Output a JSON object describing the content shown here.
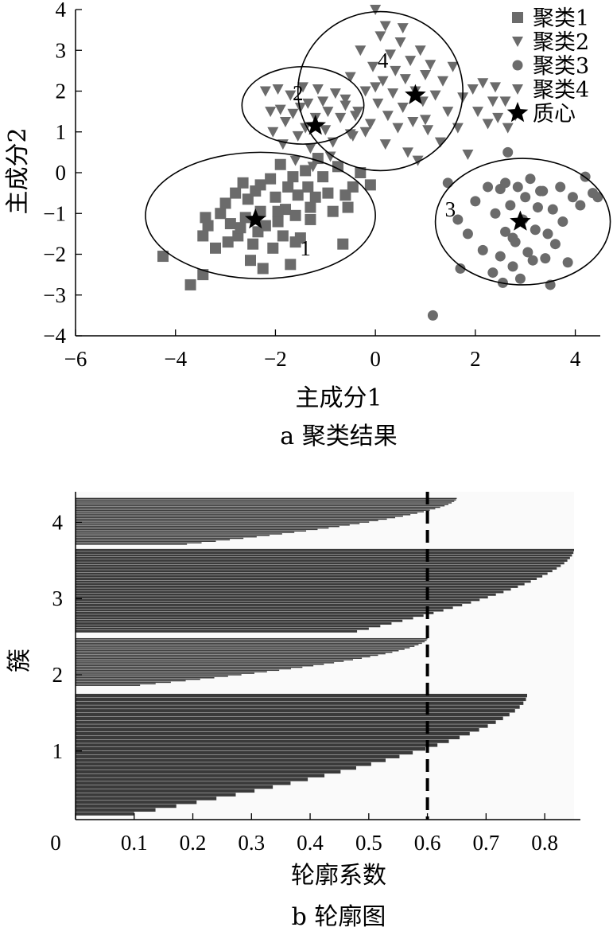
{
  "chart_data": [
    {
      "type": "scatter",
      "caption": "a 聚类结果",
      "xlabel": "主成分1",
      "ylabel": "主成分2",
      "xlim": [
        -6,
        4.5
      ],
      "ylim": [
        -4,
        4
      ],
      "xticks": [
        "−6",
        "−4",
        "−2",
        "0",
        "2",
        "4"
      ],
      "yticks": [
        "4",
        "3",
        "2",
        "1",
        "0",
        "−1",
        "−2",
        "−3",
        "−4"
      ],
      "legend_position": "top-right",
      "series": [
        {
          "name": "聚类1",
          "marker": "square",
          "color": "#6b6b6b",
          "points": [
            [
              -4.25,
              -2.05
            ],
            [
              -3.7,
              -2.75
            ],
            [
              -3.45,
              -2.5
            ],
            [
              -3.45,
              -1.55
            ],
            [
              -3.4,
              -1.1
            ],
            [
              -3.35,
              -1.3
            ],
            [
              -3.2,
              -1.85
            ],
            [
              -3.1,
              -1.0
            ],
            [
              -3.0,
              -0.75
            ],
            [
              -2.9,
              -1.25
            ],
            [
              -2.8,
              -0.5
            ],
            [
              -2.75,
              -1.55
            ],
            [
              -2.65,
              -0.25
            ],
            [
              -2.6,
              -1.1
            ],
            [
              -2.55,
              -0.65
            ],
            [
              -2.5,
              -2.15
            ],
            [
              -2.45,
              -1.75
            ],
            [
              -2.4,
              -0.45
            ],
            [
              -2.35,
              -1.45
            ],
            [
              -2.3,
              -0.95
            ],
            [
              -2.25,
              -2.35
            ],
            [
              -2.2,
              -1.3
            ],
            [
              -2.1,
              -0.15
            ],
            [
              -2.05,
              -1.85
            ],
            [
              -2.0,
              -0.6
            ],
            [
              -1.95,
              -1.2
            ],
            [
              -1.9,
              0.2
            ],
            [
              -1.85,
              -1.55
            ],
            [
              -1.8,
              -0.9
            ],
            [
              -1.75,
              -0.35
            ],
            [
              -1.7,
              -2.25
            ],
            [
              -1.65,
              -0.1
            ],
            [
              -1.6,
              -1.05
            ],
            [
              -1.55,
              -0.55
            ],
            [
              -1.5,
              -1.6
            ],
            [
              -1.4,
              0.05
            ],
            [
              -1.35,
              -0.35
            ],
            [
              -1.3,
              -1.15
            ],
            [
              -1.2,
              -0.6
            ],
            [
              -1.15,
              0.35
            ],
            [
              -1.05,
              -0.1
            ],
            [
              -0.95,
              -0.5
            ],
            [
              -0.85,
              -0.95
            ],
            [
              -0.75,
              0.15
            ],
            [
              -0.65,
              -1.75
            ],
            [
              -0.55,
              -0.85
            ],
            [
              -0.45,
              -0.35
            ],
            [
              -0.3,
              0.0
            ],
            [
              -0.1,
              -0.3
            ],
            [
              -2.7,
              -1.35
            ],
            [
              -2.95,
              -1.7
            ],
            [
              -1.6,
              -1.7
            ],
            [
              -1.95,
              -0.95
            ],
            [
              -2.3,
              -0.3
            ],
            [
              -1.3,
              -0.85
            ],
            [
              -0.6,
              -0.55
            ]
          ]
        },
        {
          "name": "聚类2",
          "marker": "triangle-down",
          "color": "#6b6b6b",
          "points": [
            [
              -2.2,
              2.0
            ],
            [
              -2.1,
              1.5
            ],
            [
              -2.05,
              1.0
            ],
            [
              -1.95,
              2.05
            ],
            [
              -1.9,
              1.55
            ],
            [
              -1.85,
              0.7
            ],
            [
              -1.8,
              1.25
            ],
            [
              -1.7,
              1.9
            ],
            [
              -1.65,
              1.45
            ],
            [
              -1.55,
              0.9
            ],
            [
              -1.5,
              1.6
            ],
            [
              -1.45,
              2.1
            ],
            [
              -1.4,
              1.1
            ],
            [
              -1.35,
              1.7
            ],
            [
              -1.3,
              0.6
            ],
            [
              -1.2,
              1.35
            ],
            [
              -1.15,
              2.05
            ],
            [
              -1.05,
              1.75
            ],
            [
              -1.0,
              1.05
            ],
            [
              -0.95,
              1.5
            ],
            [
              -0.85,
              0.75
            ],
            [
              -0.8,
              1.95
            ],
            [
              -0.7,
              1.35
            ],
            [
              -0.6,
              1.65
            ],
            [
              -0.5,
              0.95
            ],
            [
              -0.4,
              1.4
            ],
            [
              -1.6,
              0.3
            ],
            [
              -1.25,
              0.15
            ],
            [
              -0.9,
              0.4
            ]
          ]
        },
        {
          "name": "聚类3",
          "marker": "circle",
          "color": "#6b6b6b",
          "points": [
            [
              1.15,
              -3.5
            ],
            [
              1.45,
              -0.25
            ],
            [
              1.65,
              -1.15
            ],
            [
              1.7,
              -2.35
            ],
            [
              1.85,
              -1.5
            ],
            [
              2.0,
              -0.7
            ],
            [
              2.15,
              -1.9
            ],
            [
              2.25,
              -0.35
            ],
            [
              2.35,
              -2.45
            ],
            [
              2.4,
              -1.0
            ],
            [
              2.5,
              -0.4
            ],
            [
              2.5,
              -2.05
            ],
            [
              2.55,
              -2.7
            ],
            [
              2.6,
              -1.45
            ],
            [
              2.65,
              0.5
            ],
            [
              2.7,
              -0.8
            ],
            [
              2.75,
              -2.3
            ],
            [
              2.8,
              -1.7
            ],
            [
              2.85,
              -0.35
            ],
            [
              2.9,
              -2.6
            ],
            [
              2.95,
              -1.15
            ],
            [
              3.0,
              -0.6
            ],
            [
              3.05,
              -1.95
            ],
            [
              3.1,
              -0.15
            ],
            [
              3.15,
              -2.15
            ],
            [
              3.2,
              -1.4
            ],
            [
              3.25,
              -0.85
            ],
            [
              3.35,
              -0.45
            ],
            [
              3.4,
              -2.1
            ],
            [
              3.45,
              -1.5
            ],
            [
              3.5,
              -2.75
            ],
            [
              3.55,
              -0.9
            ],
            [
              3.6,
              -1.75
            ],
            [
              3.7,
              -0.35
            ],
            [
              3.75,
              -1.2
            ],
            [
              3.85,
              -2.2
            ],
            [
              3.95,
              -0.6
            ],
            [
              4.1,
              -0.8
            ],
            [
              4.2,
              -0.1
            ],
            [
              4.35,
              -0.5
            ],
            [
              4.45,
              -0.6
            ],
            [
              2.6,
              -0.25
            ],
            [
              2.75,
              -1.6
            ],
            [
              3.3,
              -0.45
            ]
          ]
        },
        {
          "name": "聚类4",
          "marker": "triangle-down",
          "color": "#6b6b6b",
          "points": [
            [
              -0.6,
              1.8
            ],
            [
              -0.5,
              2.35
            ],
            [
              -0.45,
              0.9
            ],
            [
              -0.35,
              1.5
            ],
            [
              -0.3,
              3.0
            ],
            [
              -0.2,
              2.0
            ],
            [
              -0.1,
              1.2
            ],
            [
              -0.05,
              2.6
            ],
            [
              0.0,
              4.0
            ],
            [
              0.05,
              1.7
            ],
            [
              0.1,
              3.35
            ],
            [
              0.15,
              2.25
            ],
            [
              0.2,
              0.7
            ],
            [
              0.25,
              1.4
            ],
            [
              0.3,
              2.9
            ],
            [
              0.35,
              1.95
            ],
            [
              0.4,
              2.5
            ],
            [
              0.45,
              1.1
            ],
            [
              0.5,
              3.2
            ],
            [
              0.55,
              1.6
            ],
            [
              0.6,
              2.3
            ],
            [
              0.65,
              0.5
            ],
            [
              0.7,
              2.75
            ],
            [
              0.75,
              1.25
            ],
            [
              0.8,
              2.0
            ],
            [
              0.85,
              0.3
            ],
            [
              0.9,
              3.0
            ],
            [
              0.95,
              1.75
            ],
            [
              1.0,
              2.4
            ],
            [
              1.05,
              1.05
            ],
            [
              1.1,
              2.65
            ],
            [
              1.2,
              1.9
            ],
            [
              1.3,
              0.75
            ],
            [
              1.35,
              2.25
            ],
            [
              1.45,
              1.5
            ],
            [
              1.55,
              2.6
            ],
            [
              1.65,
              1.1
            ],
            [
              1.75,
              1.85
            ],
            [
              1.85,
              0.45
            ],
            [
              1.95,
              2.05
            ],
            [
              2.05,
              1.5
            ],
            [
              2.15,
              2.2
            ],
            [
              2.25,
              1.2
            ],
            [
              2.35,
              1.75
            ],
            [
              2.45,
              1.35
            ],
            [
              2.6,
              1.75
            ],
            [
              2.4,
              2.1
            ],
            [
              2.65,
              1.1
            ],
            [
              2.8,
              1.4
            ],
            [
              0.2,
              3.6
            ],
            [
              0.55,
              3.55
            ],
            [
              0.0,
              2.1
            ],
            [
              -0.2,
              1.0
            ],
            [
              1.0,
              1.3
            ]
          ]
        },
        {
          "name": "质心",
          "marker": "star",
          "color": "#000000",
          "points": [
            [
              -2.4,
              -1.15
            ],
            [
              -1.2,
              1.15
            ],
            [
              2.9,
              -1.2
            ],
            [
              0.8,
              1.9
            ]
          ]
        }
      ],
      "clusters": [
        {
          "label": "1",
          "center": [
            -2.3,
            -1.05
          ],
          "radius": [
            2.3,
            1.55
          ],
          "label_at": [
            -1.4,
            -1.85
          ]
        },
        {
          "label": "2",
          "center": [
            -1.45,
            1.65
          ],
          "radius": [
            1.22,
            0.95
          ],
          "label_at": [
            -1.55,
            1.95
          ]
        },
        {
          "label": "3",
          "center": [
            2.95,
            -1.2
          ],
          "radius": [
            1.75,
            1.55
          ],
          "label_at": [
            1.5,
            -0.9
          ]
        },
        {
          "label": "4",
          "center": [
            0.1,
            2.0
          ],
          "radius": [
            1.65,
            1.95
          ],
          "label_at": [
            0.15,
            2.75
          ]
        }
      ]
    },
    {
      "type": "bar",
      "orientation": "horizontal",
      "caption": "b 轮廓图",
      "xlabel": "轮廓系数",
      "ylabel": "簇",
      "xlim": [
        0,
        0.85
      ],
      "ylim": [
        0.1,
        4.4
      ],
      "xticks": [
        "0",
        "0.1",
        "0.2",
        "0.3",
        "0.4",
        "0.5",
        "0.6",
        "0.7",
        "0.8"
      ],
      "yticks": [
        "4",
        "3",
        "2",
        "1"
      ],
      "reference_line": {
        "x": 0.6,
        "style": "dashed",
        "color": "#000000"
      },
      "bar_color": "#3a3a3a",
      "clusters": [
        {
          "label": "1",
          "y_range": [
            0.15,
            1.75
          ],
          "max": 0.77,
          "min": 0.1
        },
        {
          "label": "2",
          "y_range": [
            1.85,
            2.48
          ],
          "max": 0.6,
          "min": 0.11
        },
        {
          "label": "3",
          "y_range": [
            2.55,
            3.65
          ],
          "max": 0.85,
          "min": 0.48
        },
        {
          "label": "4",
          "y_range": [
            3.7,
            4.32
          ],
          "max": 0.65,
          "min": 0.19
        }
      ]
    }
  ]
}
